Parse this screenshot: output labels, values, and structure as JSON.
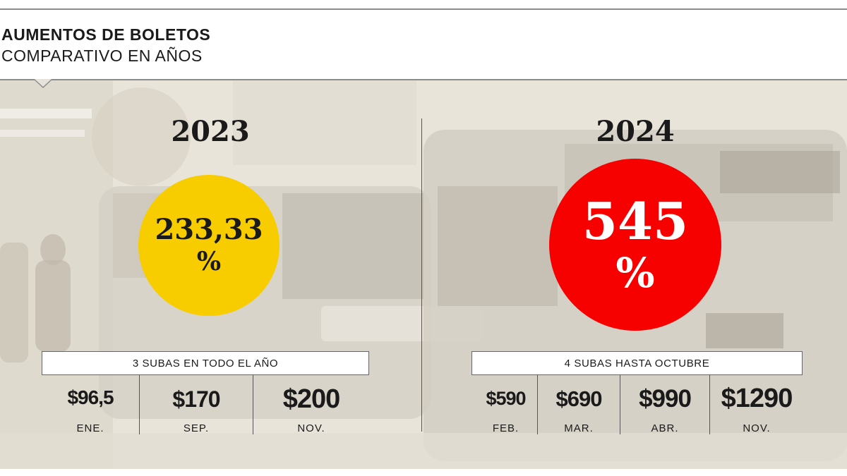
{
  "header": {
    "title": "AUMENTOS DE BOLETOS",
    "subtitle": "COMPARATIVO EN AÑOS"
  },
  "colors": {
    "highlight_2023": "#f8cd00",
    "highlight_2024": "#f70000",
    "rule": "#8c8c8c"
  },
  "years": [
    {
      "year": "2023",
      "percent": "233,33",
      "percent_symbol": "%",
      "banner": "3 SUBAS EN TODO EL AÑO",
      "raises": [
        {
          "price": "$96,5",
          "month": "ENE."
        },
        {
          "price": "$170",
          "month": "SEP."
        },
        {
          "price": "$200",
          "month": "NOV."
        }
      ]
    },
    {
      "year": "2024",
      "percent": "545",
      "percent_symbol": "%",
      "banner": "4 SUBAS HASTA OCTUBRE",
      "raises": [
        {
          "price": "$590",
          "month": "FEB."
        },
        {
          "price": "$690",
          "month": "MAR."
        },
        {
          "price": "$990",
          "month": "ABR."
        },
        {
          "price": "$1290",
          "month": "NOV."
        }
      ]
    }
  ]
}
